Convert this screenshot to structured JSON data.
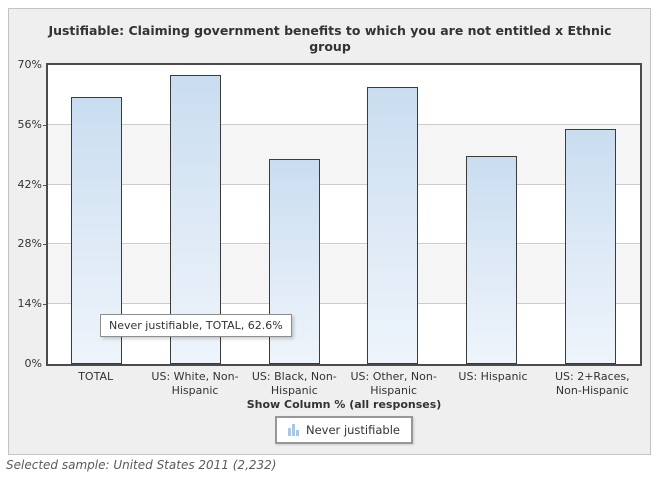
{
  "chart_data": {
    "type": "bar",
    "title": "Justifiable: Claiming government benefits to which you are not entitled x Ethnic group",
    "categories": [
      "TOTAL",
      "US: White, Non-Hispanic",
      "US: Black, Non-Hispanic",
      "US: Other, Non-Hispanic",
      "US: Hispanic",
      "US: 2+Races, Non-Hispanic"
    ],
    "series": [
      {
        "name": "Never justifiable",
        "values": [
          62.6,
          67.7,
          47.9,
          64.9,
          48.6,
          55.1
        ]
      }
    ],
    "xlabel": "Show Column % (all responses)",
    "ylabel": "",
    "ylim": [
      0,
      70
    ],
    "yticks": [
      "0%",
      "14%",
      "28%",
      "42%",
      "56%",
      "70%"
    ],
    "grid": "horizontal",
    "legend_position": "bottom",
    "colors": {
      "bar_fill_top": "#c9ddf0",
      "bar_fill_bottom": "#eef4fb",
      "bar_border": "#3b3b3b",
      "gridline": "#cccccc",
      "band_alt": "#f5f5f5",
      "panel_bg": "#efefef",
      "legend_icon_blue": "#a9c7e3"
    }
  },
  "tooltip": {
    "text": "Never justifiable, TOTAL, 62.6%"
  },
  "footer": {
    "selected_sample": "Selected sample: United States 2011 (2,232)"
  }
}
